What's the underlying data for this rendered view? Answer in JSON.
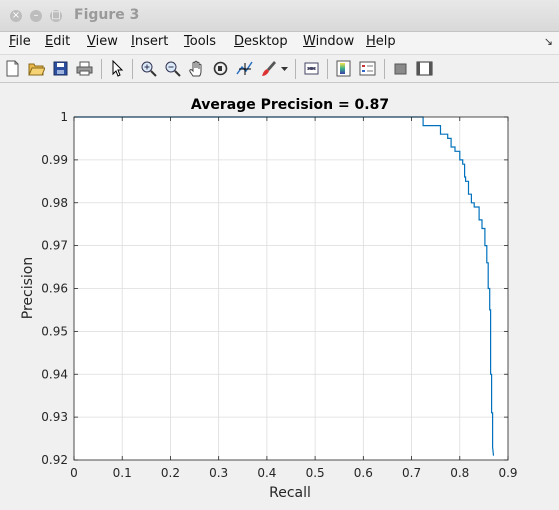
{
  "window": {
    "title": "Figure 3",
    "controls": [
      "close",
      "minimize",
      "maximize"
    ]
  },
  "menu": {
    "items": [
      {
        "first": "F",
        "rest": "ile"
      },
      {
        "first": "E",
        "rest": "dit"
      },
      {
        "first": "V",
        "rest": "iew"
      },
      {
        "first": "I",
        "rest": "nsert"
      },
      {
        "first": "T",
        "rest": "ools"
      },
      {
        "first": "D",
        "rest": "esktop"
      },
      {
        "first": "W",
        "rest": "indow"
      },
      {
        "first": "H",
        "rest": "elp"
      }
    ]
  },
  "toolbar": {
    "icons": [
      "new-figure-icon",
      "open-file-icon",
      "save-icon",
      "print-icon",
      "pointer-icon",
      "zoom-in-icon",
      "zoom-out-icon",
      "pan-icon",
      "rotate-3d-icon",
      "data-cursor-icon",
      "brush-icon",
      "brush-dropdown-icon",
      "link-plot-icon",
      "colorbar-icon",
      "legend-icon",
      "hide-plot-tools-icon",
      "show-plot-tools-icon"
    ]
  },
  "colors": {
    "curve": "#0072bd",
    "axes_bg": "#ffffff",
    "grid": "#dcdcdc",
    "figure_bg": "#f0f0f0"
  },
  "chart_data": {
    "type": "line",
    "title": "Average Precision = 0.87",
    "xlabel": "Recall",
    "ylabel": "Precision",
    "xlim": [
      0,
      0.9
    ],
    "ylim": [
      0.92,
      1
    ],
    "xticks": [
      "0",
      "0.1",
      "0.2",
      "0.3",
      "0.4",
      "0.5",
      "0.6",
      "0.7",
      "0.8",
      "0.9"
    ],
    "yticks": [
      "0.92",
      "0.93",
      "0.94",
      "0.95",
      "0.96",
      "0.97",
      "0.98",
      "0.99",
      "1"
    ],
    "grid": true,
    "series": [
      {
        "x": [
          0,
          0.724,
          0.724,
          0.76,
          0.76,
          0.775,
          0.775,
          0.782,
          0.782,
          0.79,
          0.79,
          0.8,
          0.8,
          0.806,
          0.806,
          0.81,
          0.81,
          0.812,
          0.812,
          0.818,
          0.818,
          0.824,
          0.824,
          0.83,
          0.83,
          0.84,
          0.84,
          0.846,
          0.846,
          0.852,
          0.852,
          0.856,
          0.856,
          0.859,
          0.859,
          0.862,
          0.862,
          0.864,
          0.864,
          0.866,
          0.866,
          0.868,
          0.868,
          0.87
        ],
        "y": [
          1,
          1,
          0.998,
          0.998,
          0.996,
          0.996,
          0.995,
          0.995,
          0.993,
          0.993,
          0.992,
          0.992,
          0.99,
          0.99,
          0.989,
          0.989,
          0.986,
          0.986,
          0.985,
          0.985,
          0.982,
          0.982,
          0.98,
          0.98,
          0.979,
          0.979,
          0.976,
          0.976,
          0.974,
          0.974,
          0.97,
          0.97,
          0.966,
          0.966,
          0.96,
          0.96,
          0.955,
          0.955,
          0.94,
          0.94,
          0.931,
          0.931,
          0.923,
          0.921
        ]
      }
    ]
  }
}
